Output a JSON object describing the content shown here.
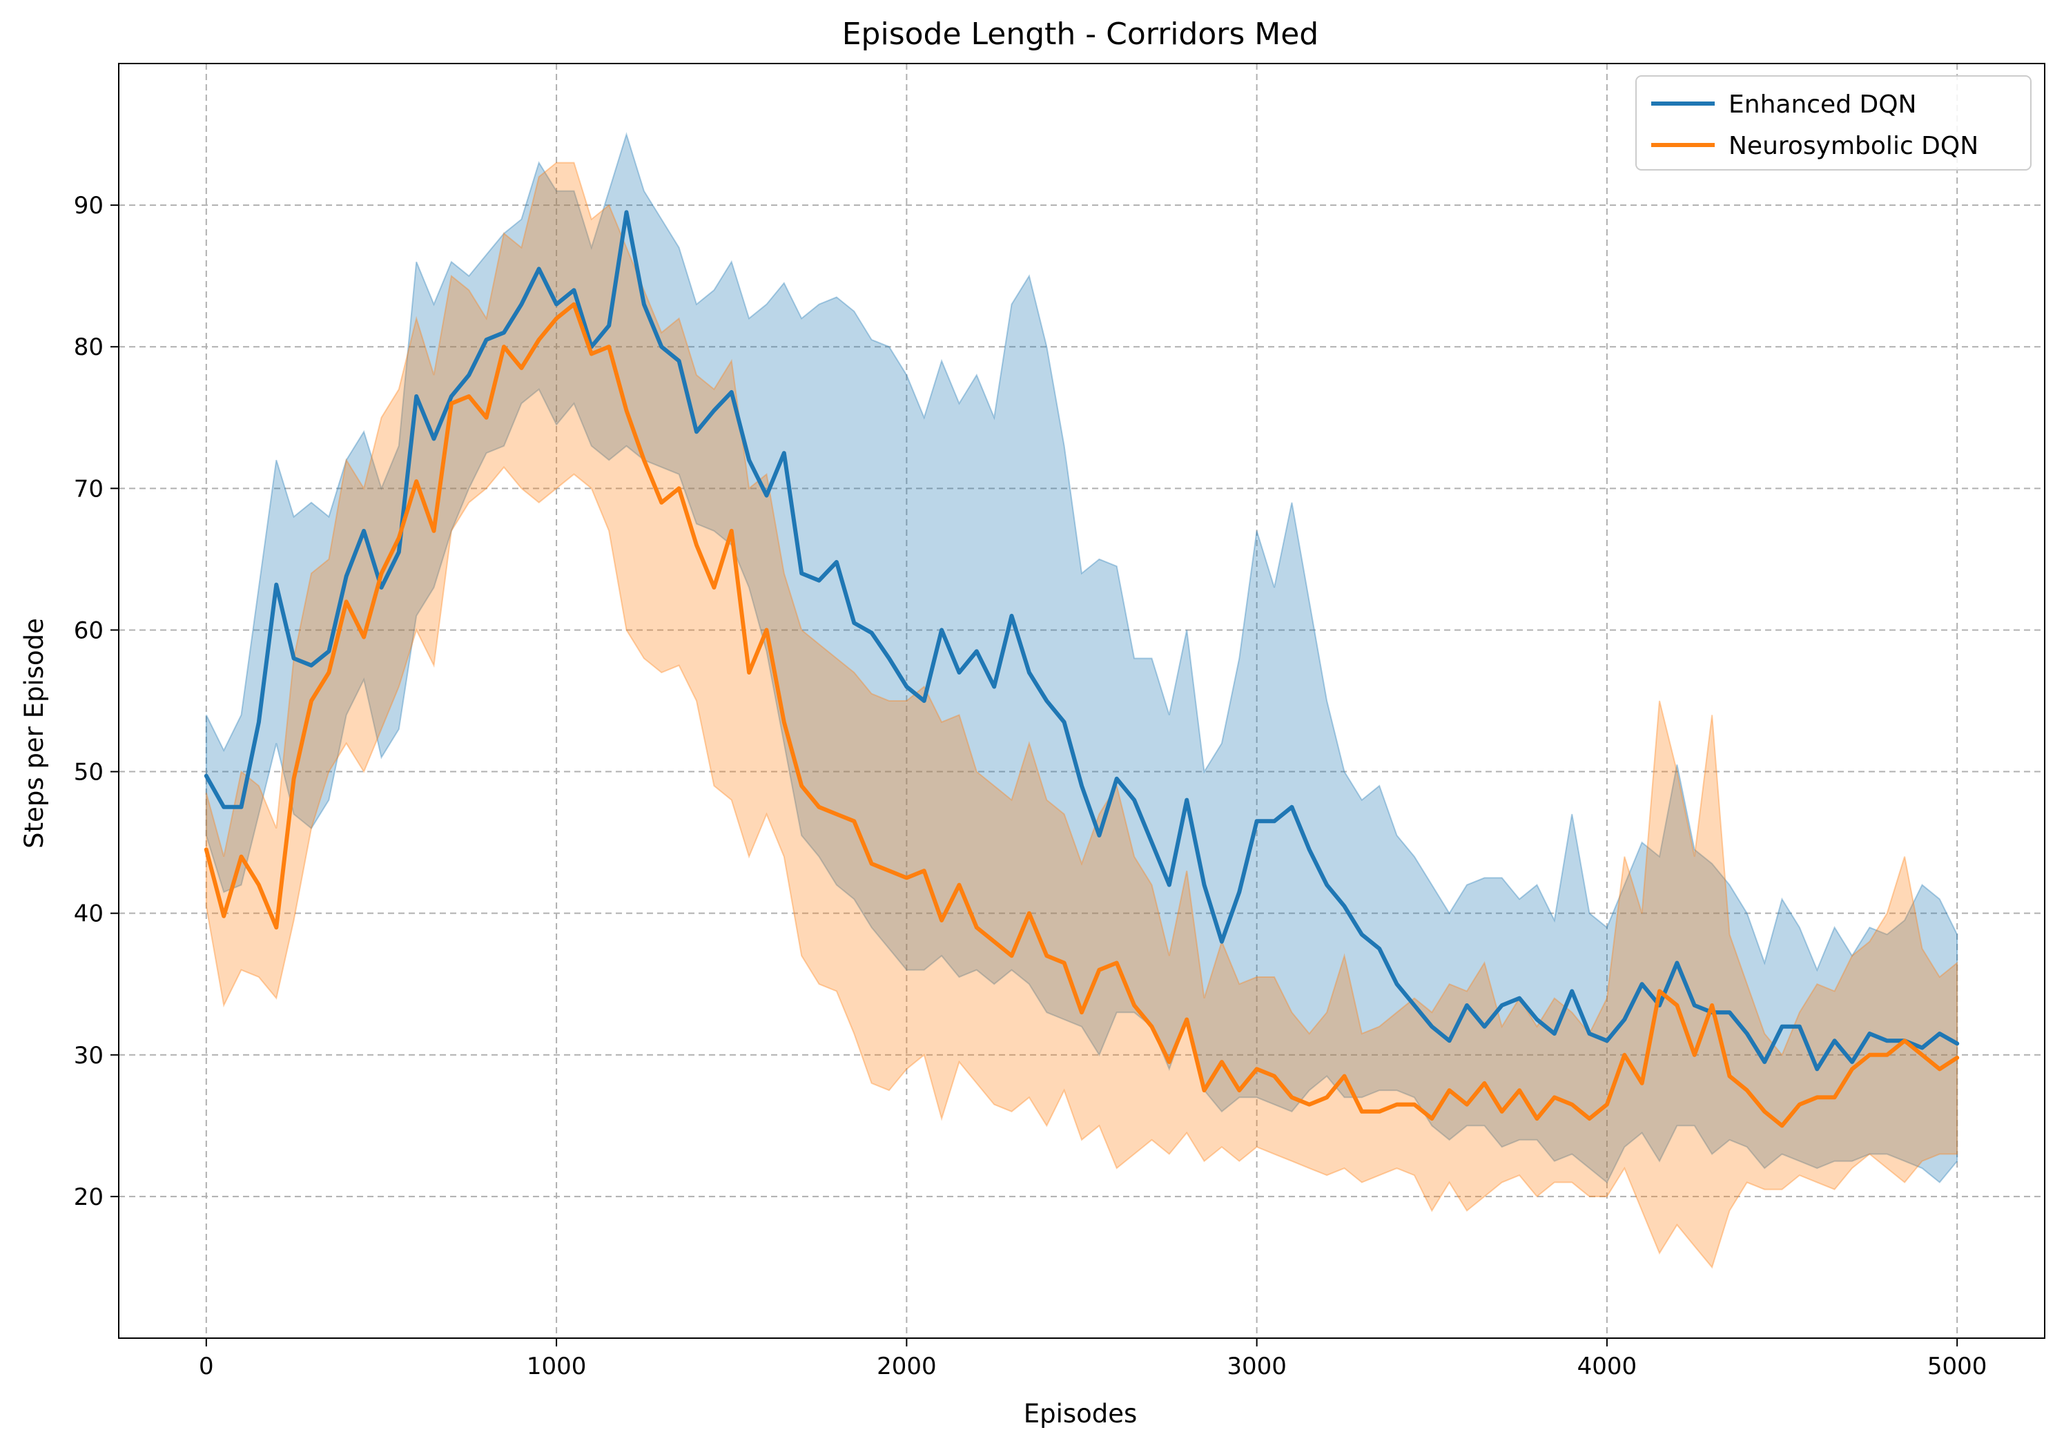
{
  "chart_data": {
    "type": "line",
    "title": "Episode Length - Corridors Med",
    "xlabel": "Episodes",
    "ylabel": "Steps per Episode",
    "xlim": [
      -250,
      5250
    ],
    "ylim": [
      10,
      100
    ],
    "xticks": [
      0,
      1000,
      2000,
      3000,
      4000,
      5000
    ],
    "yticks": [
      20,
      30,
      40,
      50,
      60,
      70,
      80,
      90
    ],
    "grid": true,
    "legend_position": "top-right",
    "series": [
      {
        "name": "Enhanced DQN",
        "color": "#1f77b4",
        "x": [
          0,
          50,
          100,
          150,
          200,
          250,
          300,
          350,
          400,
          450,
          500,
          550,
          600,
          650,
          700,
          750,
          800,
          850,
          900,
          950,
          1000,
          1050,
          1100,
          1150,
          1200,
          1250,
          1300,
          1350,
          1400,
          1450,
          1500,
          1550,
          1600,
          1650,
          1700,
          1750,
          1800,
          1850,
          1900,
          1950,
          2000,
          2050,
          2100,
          2150,
          2200,
          2250,
          2300,
          2350,
          2400,
          2450,
          2500,
          2550,
          2600,
          2650,
          2700,
          2750,
          2800,
          2850,
          2900,
          2950,
          3000,
          3050,
          3100,
          3150,
          3200,
          3250,
          3300,
          3350,
          3400,
          3450,
          3500,
          3550,
          3600,
          3650,
          3700,
          3750,
          3800,
          3850,
          3900,
          3950,
          4000,
          4050,
          4100,
          4150,
          4200,
          4250,
          4300,
          4350,
          4400,
          4450,
          4500,
          4550,
          4600,
          4650,
          4700,
          4750,
          4800,
          4850,
          4900,
          4950,
          5000
        ],
        "mean": [
          49.7,
          47.5,
          47.5,
          53.5,
          63.2,
          58.0,
          57.5,
          58.5,
          63.8,
          67.0,
          63.0,
          65.5,
          76.5,
          73.5,
          76.5,
          78.0,
          80.5,
          81.0,
          83.0,
          85.5,
          83.0,
          84.0,
          80.0,
          81.5,
          89.5,
          83.0,
          80.0,
          79.0,
          74.0,
          75.5,
          76.8,
          72.0,
          69.5,
          72.5,
          64.0,
          63.5,
          64.8,
          60.5,
          59.8,
          58.0,
          56.0,
          55.0,
          60.0,
          57.0,
          58.5,
          56.0,
          61.0,
          57.0,
          55.0,
          53.5,
          49.0,
          45.5,
          49.5,
          48.0,
          45.0,
          42.0,
          48.0,
          42.0,
          38.0,
          41.5,
          46.5,
          46.5,
          47.5,
          44.5,
          42.0,
          40.5,
          38.5,
          37.5,
          35.0,
          33.5,
          32.0,
          31.0,
          33.5,
          32.0,
          33.5,
          34.0,
          32.5,
          31.5,
          34.5,
          31.5,
          31.0,
          32.5,
          35.0,
          33.5,
          36.5,
          33.5,
          33.0,
          33.0,
          31.5,
          29.5,
          32.0,
          32.0,
          29.0,
          31.0,
          29.5,
          31.5,
          31.0,
          31.0,
          30.5,
          31.5,
          30.8
        ],
        "lower": [
          45.5,
          41.5,
          42.0,
          47.0,
          52.0,
          47.0,
          46.0,
          48.0,
          54.0,
          56.5,
          51.0,
          53.0,
          61.0,
          63.0,
          67.0,
          70.0,
          72.5,
          73.0,
          76.0,
          77.0,
          74.5,
          76.0,
          73.0,
          72.0,
          73.0,
          72.0,
          71.5,
          71.0,
          67.5,
          67.0,
          66.0,
          63.0,
          58.5,
          52.0,
          45.5,
          44.0,
          42.0,
          41.0,
          39.0,
          37.5,
          36.0,
          36.0,
          37.0,
          35.5,
          36.0,
          35.0,
          36.0,
          35.0,
          33.0,
          32.5,
          32.0,
          30.0,
          33.0,
          33.0,
          32.0,
          29.0,
          32.5,
          27.5,
          26.0,
          27.0,
          27.0,
          26.5,
          26.0,
          27.5,
          28.5,
          27.0,
          27.0,
          27.5,
          27.5,
          27.0,
          25.0,
          24.0,
          25.0,
          25.0,
          23.5,
          24.0,
          24.0,
          22.5,
          23.0,
          22.0,
          21.0,
          23.5,
          24.5,
          22.5,
          25.0,
          25.0,
          23.0,
          24.0,
          23.5,
          22.0,
          23.0,
          22.5,
          22.0,
          22.5,
          22.5,
          23.0,
          23.0,
          22.5,
          22.0,
          21.0,
          22.5
        ],
        "upper": [
          54.0,
          51.5,
          54.0,
          63.0,
          72.0,
          68.0,
          69.0,
          68.0,
          72.0,
          74.0,
          70.0,
          73.0,
          86.0,
          83.0,
          86.0,
          85.0,
          86.5,
          88.0,
          89.0,
          93.0,
          91.0,
          91.0,
          87.0,
          91.0,
          95.0,
          91.0,
          89.0,
          87.0,
          83.0,
          84.0,
          86.0,
          82.0,
          83.0,
          84.5,
          82.0,
          83.0,
          83.5,
          82.5,
          80.5,
          80.0,
          78.0,
          75.0,
          79.0,
          76.0,
          78.0,
          75.0,
          83.0,
          85.0,
          80.0,
          73.0,
          64.0,
          65.0,
          64.5,
          58.0,
          58.0,
          54.0,
          60.0,
          50.0,
          52.0,
          58.0,
          67.0,
          63.0,
          69.0,
          62.0,
          55.0,
          50.0,
          48.0,
          49.0,
          45.5,
          44.0,
          42.0,
          40.0,
          42.0,
          42.5,
          42.5,
          41.0,
          42.0,
          39.5,
          47.0,
          40.0,
          39.0,
          42.0,
          45.0,
          44.0,
          50.5,
          44.5,
          43.5,
          42.0,
          40.0,
          36.5,
          41.0,
          39.0,
          36.0,
          39.0,
          37.0,
          39.0,
          38.5,
          39.5,
          42.0,
          41.0,
          38.5
        ]
      },
      {
        "name": "Neurosymbolic DQN",
        "color": "#ff7f0e",
        "x": [
          0,
          50,
          100,
          150,
          200,
          250,
          300,
          350,
          400,
          450,
          500,
          550,
          600,
          650,
          700,
          750,
          800,
          850,
          900,
          950,
          1000,
          1050,
          1100,
          1150,
          1200,
          1250,
          1300,
          1350,
          1400,
          1450,
          1500,
          1550,
          1600,
          1650,
          1700,
          1750,
          1800,
          1850,
          1900,
          1950,
          2000,
          2050,
          2100,
          2150,
          2200,
          2250,
          2300,
          2350,
          2400,
          2450,
          2500,
          2550,
          2600,
          2650,
          2700,
          2750,
          2800,
          2850,
          2900,
          2950,
          3000,
          3050,
          3100,
          3150,
          3200,
          3250,
          3300,
          3350,
          3400,
          3450,
          3500,
          3550,
          3600,
          3650,
          3700,
          3750,
          3800,
          3850,
          3900,
          3950,
          4000,
          4050,
          4100,
          4150,
          4200,
          4250,
          4300,
          4350,
          4400,
          4450,
          4500,
          4550,
          4600,
          4650,
          4700,
          4750,
          4800,
          4850,
          4900,
          4950,
          5000
        ],
        "mean": [
          44.5,
          39.8,
          44.0,
          42.0,
          39.0,
          49.5,
          55.0,
          57.0,
          62.0,
          59.5,
          64.0,
          66.5,
          70.5,
          67.0,
          76.0,
          76.5,
          75.0,
          80.0,
          78.5,
          80.5,
          82.0,
          83.0,
          79.5,
          80.0,
          75.5,
          72.0,
          69.0,
          70.0,
          66.0,
          63.0,
          67.0,
          57.0,
          60.0,
          53.5,
          49.0,
          47.5,
          47.0,
          46.5,
          43.5,
          43.0,
          42.5,
          43.0,
          39.5,
          42.0,
          39.0,
          38.0,
          37.0,
          40.0,
          37.0,
          36.5,
          33.0,
          36.0,
          36.5,
          33.5,
          32.0,
          29.5,
          32.5,
          27.5,
          29.5,
          27.5,
          29.0,
          28.5,
          27.0,
          26.5,
          27.0,
          28.5,
          26.0,
          26.0,
          26.5,
          26.5,
          25.5,
          27.5,
          26.5,
          28.0,
          26.0,
          27.5,
          25.5,
          27.0,
          26.5,
          25.5,
          26.5,
          30.0,
          28.0,
          34.5,
          33.5,
          30.0,
          33.5,
          28.5,
          27.5,
          26.0,
          25.0,
          26.5,
          27.0,
          27.0,
          29.0,
          30.0,
          30.0,
          31.0,
          30.0,
          29.0,
          29.8
        ],
        "lower": [
          40.5,
          33.5,
          36.0,
          35.5,
          34.0,
          39.5,
          46.0,
          50.0,
          52.0,
          50.0,
          53.0,
          56.0,
          60.0,
          57.5,
          67.0,
          69.0,
          70.0,
          71.5,
          70.0,
          69.0,
          70.0,
          71.0,
          70.0,
          67.0,
          60.0,
          58.0,
          57.0,
          57.5,
          55.0,
          49.0,
          48.0,
          44.0,
          47.0,
          44.0,
          37.0,
          35.0,
          34.5,
          31.5,
          28.0,
          27.5,
          29.0,
          30.0,
          25.5,
          29.5,
          28.0,
          26.5,
          26.0,
          27.0,
          25.0,
          27.5,
          24.0,
          25.0,
          22.0,
          23.0,
          24.0,
          23.0,
          24.5,
          22.5,
          23.5,
          22.5,
          23.5,
          23.0,
          22.5,
          22.0,
          21.5,
          22.0,
          21.0,
          21.5,
          22.0,
          21.5,
          19.0,
          21.0,
          19.0,
          20.0,
          21.0,
          21.5,
          20.0,
          21.0,
          21.0,
          20.0,
          20.0,
          22.0,
          19.0,
          16.0,
          18.0,
          16.5,
          15.0,
          19.0,
          21.0,
          20.5,
          20.5,
          21.5,
          21.0,
          20.5,
          22.0,
          23.0,
          22.0,
          21.0,
          22.5,
          23.0,
          23.0
        ],
        "upper": [
          48.5,
          44.0,
          50.0,
          49.0,
          46.0,
          58.0,
          64.0,
          65.0,
          72.0,
          70.0,
          75.0,
          77.0,
          82.0,
          78.0,
          85.0,
          84.0,
          82.0,
          88.0,
          87.0,
          92.0,
          93.0,
          93.0,
          89.0,
          90.0,
          87.0,
          84.0,
          81.0,
          82.0,
          78.0,
          77.0,
          79.0,
          70.0,
          71.0,
          64.0,
          60.0,
          59.0,
          58.0,
          57.0,
          55.5,
          55.0,
          55.0,
          56.0,
          53.5,
          54.0,
          50.0,
          49.0,
          48.0,
          52.0,
          48.0,
          47.0,
          43.5,
          47.0,
          49.0,
          44.0,
          42.0,
          37.0,
          43.0,
          34.0,
          38.0,
          35.0,
          35.5,
          35.5,
          33.0,
          31.5,
          33.0,
          37.0,
          31.5,
          32.0,
          33.0,
          34.0,
          33.0,
          35.0,
          34.5,
          36.5,
          32.0,
          34.0,
          32.0,
          34.0,
          33.0,
          31.5,
          34.0,
          44.0,
          40.0,
          55.0,
          50.0,
          44.0,
          54.0,
          38.5,
          35.0,
          31.5,
          30.0,
          33.0,
          35.0,
          34.5,
          37.0,
          38.0,
          40.0,
          44.0,
          37.5,
          35.5,
          36.5
        ]
      }
    ]
  }
}
